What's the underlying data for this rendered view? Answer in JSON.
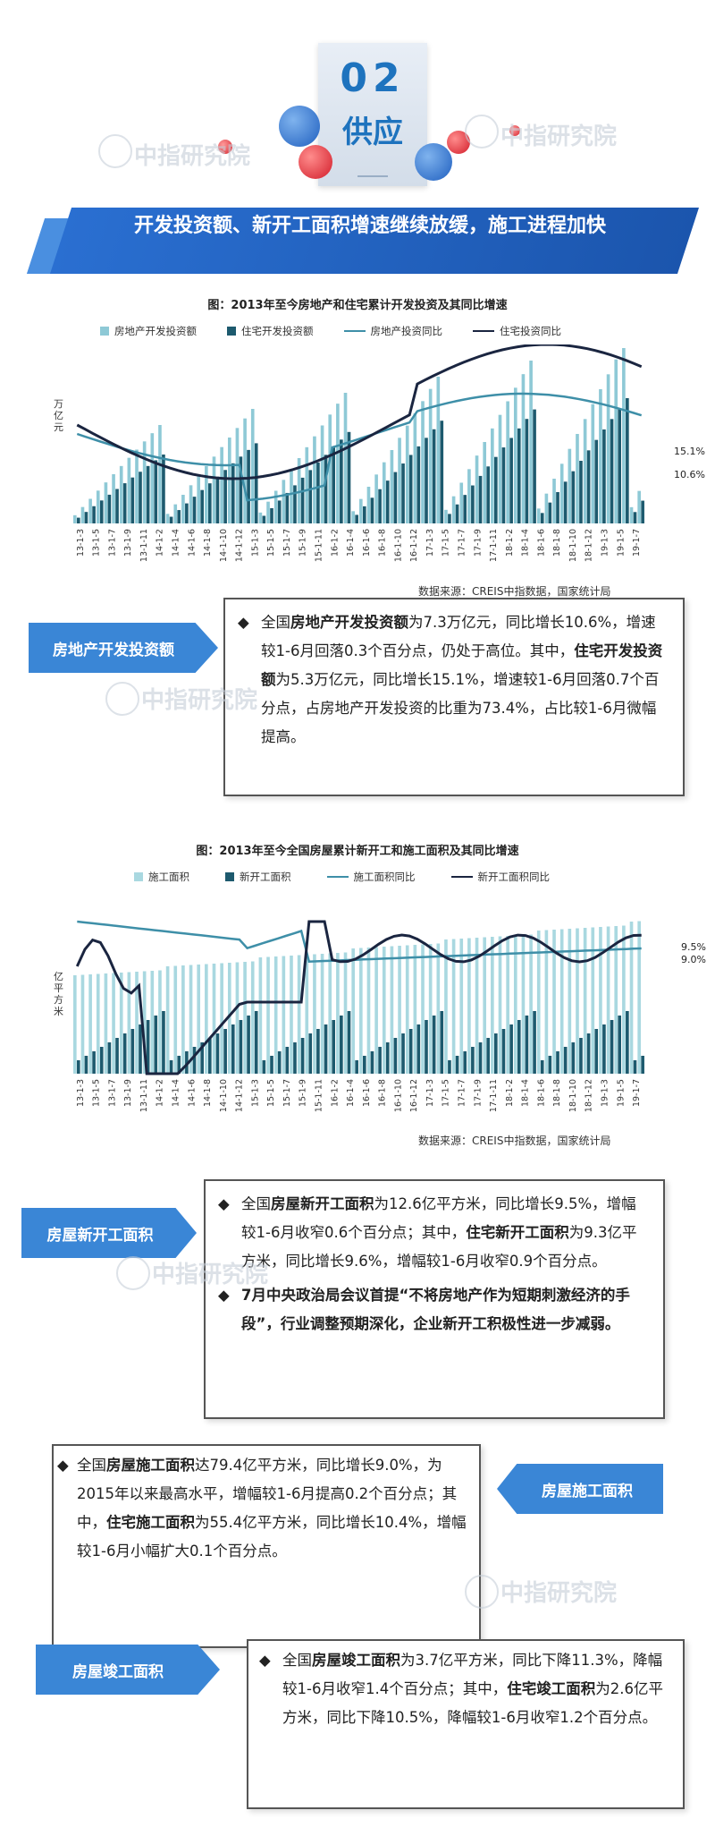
{
  "header": {
    "number": "02",
    "word": "供应"
  },
  "section_title": "开发投资额、新开工面积增速继续放缓，施工进程加快",
  "watermark": "中指研究院",
  "chart1": {
    "title": "图：2013年至今房地产和住宅累计开发投资及其同比增速",
    "legend": [
      "房地产开发投资额",
      "住宅开发投资额",
      "房地产投资同比",
      "住宅投资同比"
    ],
    "ylabel": [
      "万",
      "亿",
      "元"
    ],
    "end_labels": [
      "15.1%",
      "10.6%"
    ],
    "xticks": [
      "13-1-3",
      "13-1-5",
      "13-1-7",
      "13-1-9",
      "13-1-11",
      "14-1-2",
      "14-1-4",
      "14-1-6",
      "14-1-8",
      "14-1-10",
      "14-1-12",
      "15-1-3",
      "15-1-5",
      "15-1-7",
      "15-1-9",
      "15-1-11",
      "16-1-2",
      "16-1-4",
      "16-1-6",
      "16-1-8",
      "16-1-10",
      "16-1-12",
      "17-1-3",
      "17-1-5",
      "17-1-7",
      "17-1-9",
      "17-1-11",
      "18-1-2",
      "18-1-4",
      "18-1-6",
      "18-1-8",
      "18-1-10",
      "18-1-12",
      "19-1-3",
      "19-1-5",
      "19-1-7"
    ],
    "source": "数据来源：CREIS中指数据，国家统计局"
  },
  "chart2": {
    "title": "图：2013年至今全国房屋累计新开工和施工面积及其同比增速",
    "legend": [
      "施工面积",
      "新开工面积",
      "施工面积同比",
      "新开工面积同比"
    ],
    "ylabel": [
      "亿",
      "平",
      "方",
      "米"
    ],
    "end_labels": [
      "9.5%",
      "9.0%"
    ],
    "xticks": [
      "13-1-3",
      "13-1-5",
      "13-1-7",
      "13-1-9",
      "13-1-11",
      "14-1-2",
      "14-1-4",
      "14-1-6",
      "14-1-8",
      "14-1-10",
      "14-1-12",
      "15-1-3",
      "15-1-5",
      "15-1-7",
      "15-1-9",
      "15-1-11",
      "16-1-2",
      "16-1-4",
      "16-1-6",
      "16-1-8",
      "16-1-10",
      "16-1-12",
      "17-1-3",
      "17-1-5",
      "17-1-7",
      "17-1-9",
      "17-1-11",
      "18-1-2",
      "18-1-4",
      "18-1-6",
      "18-1-8",
      "18-1-10",
      "18-1-12",
      "19-1-3",
      "19-1-5",
      "19-1-7"
    ],
    "source": "数据来源：CREIS中指数据，国家统计局"
  },
  "tags": {
    "investment": "房地产开发投资额",
    "new_start": "房屋新开工面积",
    "construction": "房屋施工面积",
    "completion": "房屋竣工面积"
  },
  "texts": {
    "investment": {
      "p1": "全国",
      "b1": "房地产开发投资额",
      "p2": "为7.3万亿元，同比增长10.6%，增速较1-6月回落0.3个百分点，仍处于高位。其中，",
      "b2": "住宅开发投资额",
      "p3": "为5.3万亿元，同比增长15.1%，增速较1-6月回落0.7个百分点，占房地产开发投资的比重为73.4%，占比较1-6月微幅提高。"
    },
    "new_start": {
      "p1": "全国",
      "b1": "房屋新开工面积",
      "p2": "为12.6亿平方米，同比增长9.5%，增幅较1-6月收窄0.6个百分点；其中，",
      "b2": "住宅新开工面积",
      "p3": "为9.3亿平方米，同比增长9.6%，增幅较1-6月收窄0.9个百分点。",
      "bullet2": "7月中央政治局会议首提“不将房地产作为短期刺激经济的手段”，行业调整预期深化，企业新开工积极性进一步减弱。"
    },
    "construction": {
      "p1": "全国",
      "b1": "房屋施工面积",
      "p2": "达79.4亿平方米，同比增长9.0%，为2015年以来最高水平，增幅较1-6月提高0.2个百分点；其中，",
      "b2": "住宅施工面积",
      "p3": "为55.4亿平方米，同比增长10.4%，增幅较1-6月小幅扩大0.1个百分点。"
    },
    "completion": {
      "p1": "全国",
      "b1": "房屋竣工面积",
      "p2": "为3.7亿平方米，同比下降11.3%，降幅较1-6月收窄1.4个百分点；其中，",
      "b2": "住宅竣工面积",
      "p3": "为2.6亿平方米，同比下降10.5%，降幅较1-6月收窄1.2个百分点。"
    }
  },
  "colors": {
    "accent": "#1e73be",
    "light_bar": "#8ec9d6",
    "dark_bar": "#1d5a6e",
    "line_light": "#3e8fa8",
    "line_dark": "#1a2540"
  }
}
